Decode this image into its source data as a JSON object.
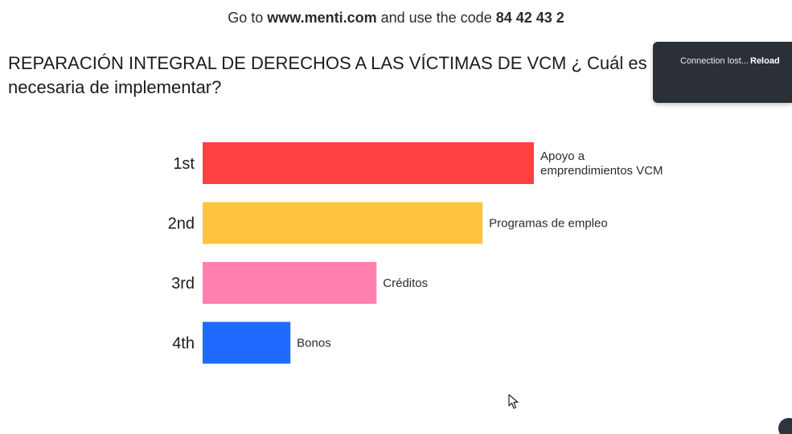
{
  "join": {
    "prefix": "Go to ",
    "url": "www.menti.com",
    "middle": " and use the code ",
    "code": "84 42 43 2"
  },
  "question": {
    "line1": "REPARACIÓN INTEGRAL DE DERECHOS A LAS VÍCTIMAS DE VCM ¿ Cuál es la más",
    "line2": "necesaria de implementar?"
  },
  "toast": {
    "message": "Connection lost...",
    "action": "Reload"
  },
  "colors": {
    "bar_1": "#ff4040",
    "bar_2": "#ffc43d",
    "bar_3": "#ff7faf",
    "bar_4": "#1f6bff"
  },
  "chart_data": {
    "type": "bar",
    "orientation": "horizontal",
    "categories": [
      "1st",
      "2nd",
      "3rd",
      "4th"
    ],
    "labels": [
      [
        "Apoyo a",
        "emprendimientos VCM"
      ],
      [
        "Programas de empleo"
      ],
      [
        "Créditos"
      ],
      [
        "Bonos"
      ]
    ],
    "values": [
      100,
      84.5,
      52.5,
      26.5
    ],
    "colors": [
      "#ff4040",
      "#ffc43d",
      "#ff7faf",
      "#1f6bff"
    ]
  }
}
